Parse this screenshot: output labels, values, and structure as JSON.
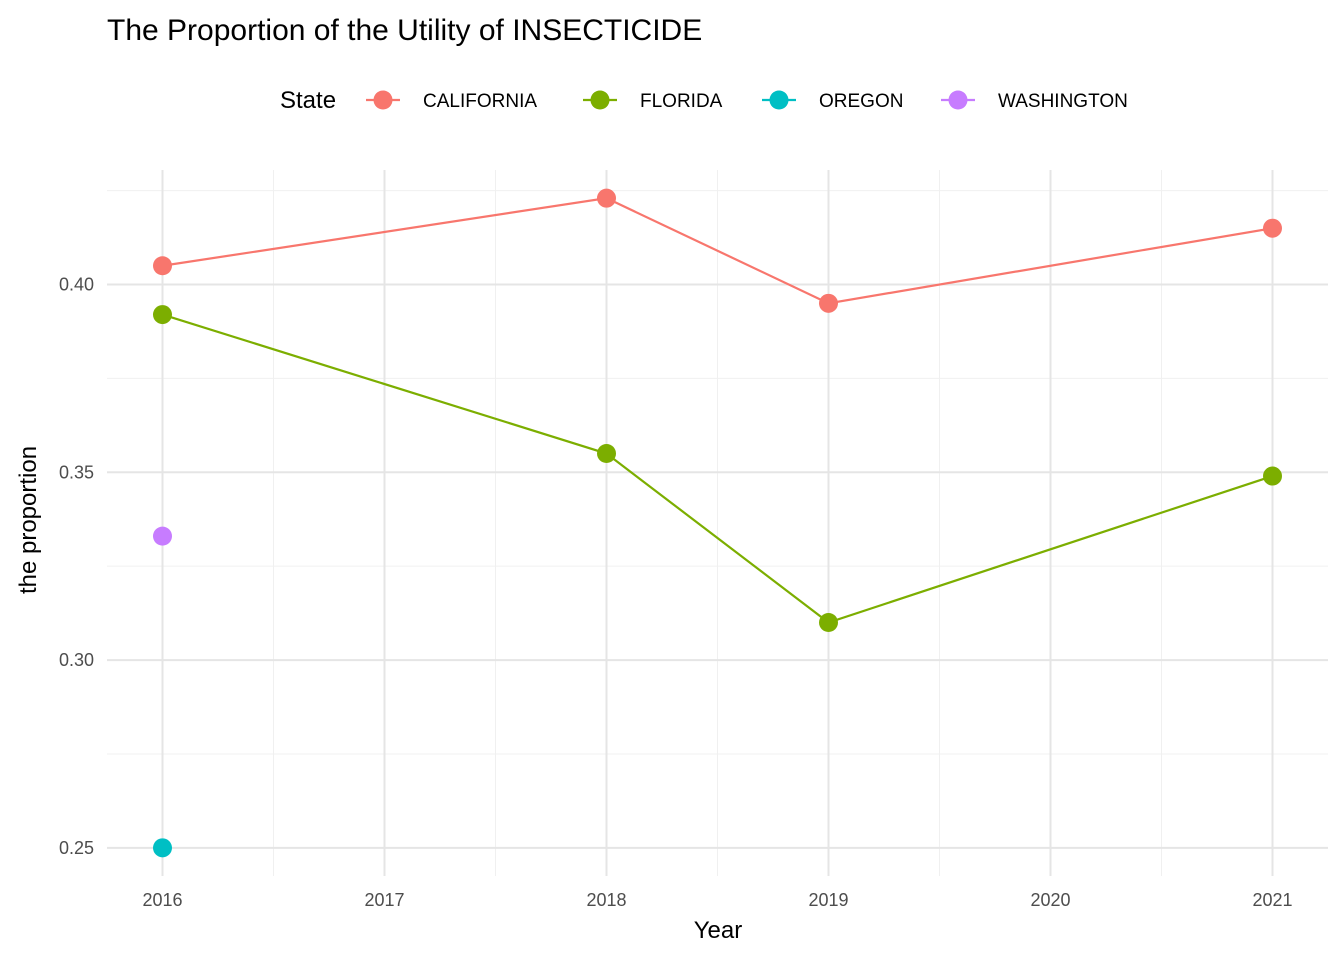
{
  "chart_data": {
    "type": "line",
    "title": "The Proportion of the Utility of INSECTICIDE",
    "xlabel": "Year",
    "ylabel": "the proportion",
    "legend_title": "State",
    "legend_position": "top",
    "grid": true,
    "xlim": [
      2015.75,
      2021.25
    ],
    "ylim": [
      0.2425,
      0.4305
    ],
    "x_ticks": [
      2016,
      2017,
      2018,
      2019,
      2020,
      2021
    ],
    "y_ticks": [
      0.25,
      0.3,
      0.35,
      0.4
    ],
    "y_tick_labels": [
      "0.25",
      "0.30",
      "0.35",
      "0.40"
    ],
    "series": [
      {
        "name": "CALIFORNIA",
        "color": "#F8766D",
        "x": [
          2016,
          2018,
          2019,
          2021
        ],
        "y": [
          0.405,
          0.423,
          0.395,
          0.415
        ]
      },
      {
        "name": "FLORIDA",
        "color": "#7CAE00",
        "x": [
          2016,
          2018,
          2019,
          2021
        ],
        "y": [
          0.392,
          0.355,
          0.31,
          0.349
        ]
      },
      {
        "name": "OREGON",
        "color": "#00BFC4",
        "x": [
          2016
        ],
        "y": [
          0.25
        ]
      },
      {
        "name": "WASHINGTON",
        "color": "#C77CFF",
        "x": [
          2016
        ],
        "y": [
          0.333
        ]
      }
    ]
  }
}
